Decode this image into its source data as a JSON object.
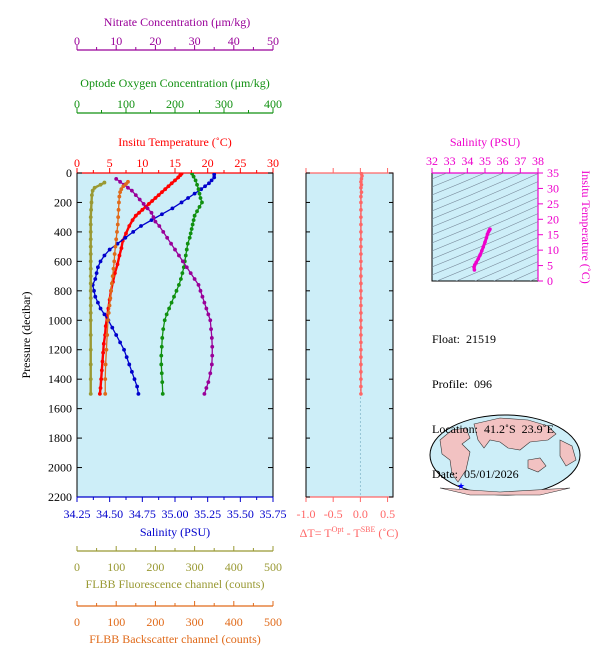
{
  "colors": {
    "temperature": "#ff0000",
    "salinity": "#0000cc",
    "oxygen": "#109010",
    "nitrate": "#990099",
    "fluorescence": "#999933",
    "backscatter": "#e06a1a",
    "delta_t": "#ff6666",
    "ts_magenta": "#ee00cc",
    "plot_bg": "#cdeef8"
  },
  "axes": {
    "nitrate": {
      "label": "Nitrate Concentration (μm/kg)",
      "ticks": [
        "0",
        "10",
        "20",
        "30",
        "40",
        "50"
      ]
    },
    "oxygen": {
      "label": "Optode Oxygen Concentration (μm/kg)",
      "ticks": [
        "0",
        "100",
        "200",
        "300",
        "400"
      ]
    },
    "temperature": {
      "label": "Insitu Temperature (˚C)",
      "ticks": [
        "0",
        "5",
        "10",
        "15",
        "20",
        "25",
        "30"
      ]
    },
    "pressure": {
      "label": "Pressure (decibar)",
      "ticks": [
        "0",
        "200",
        "400",
        "600",
        "800",
        "1000",
        "1200",
        "1400",
        "1600",
        "1800",
        "2000",
        "2200"
      ]
    },
    "salinity": {
      "label": "Salinity (PSU)",
      "ticks": [
        "34.25",
        "34.50",
        "34.75",
        "35.00",
        "35.25",
        "35.50",
        "35.75"
      ]
    },
    "fluorescence": {
      "label": "FLBB Fluorescence channel (counts)",
      "ticks": [
        "0",
        "100",
        "200",
        "300",
        "400",
        "500"
      ]
    },
    "backscatter": {
      "label": "FLBB Backscatter channel (counts)",
      "ticks": [
        "0",
        "100",
        "200",
        "300",
        "400",
        "500"
      ]
    },
    "delta_t": {
      "label_main": "ΔT= T",
      "sup1": "Opt",
      "label_mid": " - T",
      "sup2": "SBE",
      "label_end": " (˚C)",
      "ticks": [
        "-1.0",
        "-0.5",
        "0.0",
        "0.5"
      ]
    },
    "ts_salinity": {
      "label": "Salinity (PSU)",
      "ticks": [
        "32",
        "33",
        "34",
        "35",
        "36",
        "37",
        "38"
      ]
    },
    "ts_temperature": {
      "label": "Insitu Temperature (˚C)",
      "ticks": [
        "0",
        "5",
        "10",
        "15",
        "20",
        "25",
        "30",
        "35"
      ]
    }
  },
  "info": {
    "float": "Float:  21519",
    "profile": "Profile:  096",
    "location": "Location:  41.2˚S  23.9˚E",
    "date": "Date:  05/01/2026"
  },
  "chart_data": {
    "type": "line",
    "y_axis": "pressure",
    "ylim": [
      0,
      2200
    ],
    "series": [
      {
        "name": "Insitu Temperature",
        "axis": "temperature",
        "xlim": [
          0,
          30
        ],
        "points": [
          [
            16,
            5
          ],
          [
            15.8,
            15
          ],
          [
            15.5,
            30
          ],
          [
            15,
            50
          ],
          [
            14.5,
            70
          ],
          [
            14,
            90
          ],
          [
            13.5,
            110
          ],
          [
            13,
            130
          ],
          [
            12.5,
            150
          ],
          [
            12,
            170
          ],
          [
            11.5,
            190
          ],
          [
            11,
            210
          ],
          [
            10.5,
            230
          ],
          [
            10,
            250
          ],
          [
            9.5,
            270
          ],
          [
            9,
            290
          ],
          [
            8.5,
            320
          ],
          [
            8,
            360
          ],
          [
            7.5,
            410
          ],
          [
            7,
            460
          ],
          [
            6.8,
            510
          ],
          [
            6.5,
            560
          ],
          [
            6.2,
            620
          ],
          [
            5.8,
            680
          ],
          [
            5.5,
            740
          ],
          [
            5.2,
            800
          ],
          [
            5,
            860
          ],
          [
            4.8,
            920
          ],
          [
            4.6,
            980
          ],
          [
            4.4,
            1040
          ],
          [
            4.3,
            1100
          ],
          [
            4.1,
            1160
          ],
          [
            4,
            1220
          ],
          [
            3.9,
            1280
          ],
          [
            3.8,
            1340
          ],
          [
            3.7,
            1400
          ],
          [
            3.6,
            1460
          ],
          [
            3.5,
            1500
          ]
        ]
      },
      {
        "name": "Salinity",
        "axis": "salinity",
        "xlim": [
          34.25,
          35.75
        ],
        "points": [
          [
            35.3,
            10
          ],
          [
            35.3,
            30
          ],
          [
            35.28,
            50
          ],
          [
            35.26,
            70
          ],
          [
            35.23,
            90
          ],
          [
            35.2,
            110
          ],
          [
            35.15,
            140
          ],
          [
            35.1,
            170
          ],
          [
            35.05,
            200
          ],
          [
            34.98,
            240
          ],
          [
            34.9,
            280
          ],
          [
            34.82,
            320
          ],
          [
            34.74,
            360
          ],
          [
            34.68,
            400
          ],
          [
            34.62,
            440
          ],
          [
            34.56,
            480
          ],
          [
            34.5,
            520
          ],
          [
            34.46,
            560
          ],
          [
            34.43,
            600
          ],
          [
            34.41,
            640
          ],
          [
            34.4,
            680
          ],
          [
            34.39,
            720
          ],
          [
            34.37,
            760
          ],
          [
            34.38,
            800
          ],
          [
            34.39,
            840
          ],
          [
            34.41,
            880
          ],
          [
            34.43,
            920
          ],
          [
            34.46,
            960
          ],
          [
            34.49,
            1000
          ],
          [
            34.52,
            1050
          ],
          [
            34.55,
            1100
          ],
          [
            34.58,
            1150
          ],
          [
            34.61,
            1200
          ],
          [
            34.63,
            1250
          ],
          [
            34.65,
            1300
          ],
          [
            34.67,
            1350
          ],
          [
            34.69,
            1400
          ],
          [
            34.71,
            1450
          ],
          [
            34.72,
            1500
          ]
        ]
      },
      {
        "name": "Optode Oxygen Concentration",
        "axis": "oxygen",
        "xlim": [
          0,
          400
        ],
        "points": [
          [
            235,
            5
          ],
          [
            238,
            25
          ],
          [
            242,
            50
          ],
          [
            245,
            80
          ],
          [
            248,
            110
          ],
          [
            250,
            140
          ],
          [
            252,
            170
          ],
          [
            255,
            200
          ],
          [
            250,
            230
          ],
          [
            245,
            260
          ],
          [
            240,
            290
          ],
          [
            238,
            320
          ],
          [
            236,
            350
          ],
          [
            234,
            380
          ],
          [
            232,
            410
          ],
          [
            230,
            440
          ],
          [
            226,
            480
          ],
          [
            224,
            520
          ],
          [
            222,
            560
          ],
          [
            220,
            600
          ],
          [
            218,
            640
          ],
          [
            215,
            680
          ],
          [
            212,
            720
          ],
          [
            208,
            760
          ],
          [
            203,
            800
          ],
          [
            198,
            840
          ],
          [
            193,
            880
          ],
          [
            188,
            920
          ],
          [
            183,
            960
          ],
          [
            179,
            1000
          ],
          [
            176,
            1060
          ],
          [
            174,
            1120
          ],
          [
            173,
            1180
          ],
          [
            172,
            1240
          ],
          [
            172,
            1300
          ],
          [
            173,
            1360
          ],
          [
            174,
            1420
          ],
          [
            175,
            1500
          ]
        ]
      },
      {
        "name": "Nitrate Concentration",
        "axis": "nitrate",
        "xlim": [
          0,
          50
        ],
        "points": [
          [
            10,
            40
          ],
          [
            11,
            60
          ],
          [
            12,
            80
          ],
          [
            13,
            100
          ],
          [
            14,
            120
          ],
          [
            15,
            150
          ],
          [
            16,
            180
          ],
          [
            17,
            210
          ],
          [
            18,
            240
          ],
          [
            19,
            270
          ],
          [
            19.5,
            300
          ],
          [
            20,
            330
          ],
          [
            21,
            360
          ],
          [
            22,
            400
          ],
          [
            23,
            440
          ],
          [
            24,
            480
          ],
          [
            25,
            520
          ],
          [
            26,
            560
          ],
          [
            27,
            600
          ],
          [
            28,
            640
          ],
          [
            29,
            680
          ],
          [
            30,
            720
          ],
          [
            31,
            760
          ],
          [
            31.5,
            800
          ],
          [
            32,
            840
          ],
          [
            32.5,
            880
          ],
          [
            33,
            920
          ],
          [
            33.5,
            960
          ],
          [
            34,
            1000
          ],
          [
            34.2,
            1060
          ],
          [
            34.4,
            1120
          ],
          [
            34.5,
            1180
          ],
          [
            34.5,
            1240
          ],
          [
            34.4,
            1300
          ],
          [
            34,
            1360
          ],
          [
            33.5,
            1420
          ],
          [
            33,
            1460
          ],
          [
            32.5,
            1500
          ]
        ]
      },
      {
        "name": "FLBB Fluorescence channel",
        "axis": "fluorescence",
        "xlim": [
          0,
          500
        ],
        "points": [
          [
            70,
            65
          ],
          [
            60,
            80
          ],
          [
            45,
            100
          ],
          [
            40,
            120
          ],
          [
            38,
            150
          ],
          [
            37,
            200
          ],
          [
            36,
            250
          ],
          [
            35,
            300
          ],
          [
            35,
            350
          ],
          [
            35,
            400
          ],
          [
            35,
            450
          ],
          [
            35,
            500
          ],
          [
            35,
            550
          ],
          [
            35,
            600
          ],
          [
            35,
            650
          ],
          [
            35,
            700
          ],
          [
            35,
            750
          ],
          [
            35,
            800
          ],
          [
            35,
            850
          ],
          [
            35,
            900
          ],
          [
            35,
            950
          ],
          [
            35,
            1000
          ],
          [
            35,
            1100
          ],
          [
            35,
            1200
          ],
          [
            35,
            1300
          ],
          [
            35,
            1400
          ],
          [
            35,
            1500
          ]
        ]
      },
      {
        "name": "FLBB Backscatter channel",
        "axis": "backscatter",
        "xlim": [
          0,
          500
        ],
        "points": [
          [
            130,
            60
          ],
          [
            125,
            75
          ],
          [
            118,
            90
          ],
          [
            113,
            110
          ],
          [
            110,
            130
          ],
          [
            108,
            160
          ],
          [
            107,
            200
          ],
          [
            106,
            250
          ],
          [
            105,
            300
          ],
          [
            104,
            350
          ],
          [
            102,
            400
          ],
          [
            100,
            450
          ],
          [
            98,
            500
          ],
          [
            96,
            550
          ],
          [
            95,
            600
          ],
          [
            93,
            650
          ],
          [
            91,
            700
          ],
          [
            89,
            750
          ],
          [
            87,
            800
          ],
          [
            85,
            850
          ],
          [
            83,
            900
          ],
          [
            81,
            950
          ],
          [
            79,
            1000
          ],
          [
            77,
            1100
          ],
          [
            75,
            1200
          ],
          [
            73,
            1300
          ],
          [
            72,
            1400
          ],
          [
            72,
            1500
          ]
        ]
      }
    ],
    "delta_t": {
      "xlim": [
        -1.0,
        0.6
      ],
      "points": [
        [
          0.02,
          5
        ],
        [
          0.03,
          20
        ],
        [
          0.02,
          40
        ],
        [
          0.01,
          60
        ],
        [
          0.02,
          80
        ],
        [
          0.01,
          100
        ],
        [
          0.02,
          130
        ],
        [
          0.01,
          160
        ],
        [
          0.01,
          200
        ],
        [
          0.01,
          250
        ],
        [
          0.01,
          300
        ],
        [
          0.01,
          350
        ],
        [
          0.01,
          400
        ],
        [
          0.01,
          450
        ],
        [
          0.01,
          500
        ],
        [
          0.01,
          550
        ],
        [
          0.01,
          600
        ],
        [
          0.01,
          650
        ],
        [
          0.01,
          700
        ],
        [
          0.01,
          750
        ],
        [
          0.01,
          800
        ],
        [
          0.01,
          850
        ],
        [
          0.01,
          900
        ],
        [
          0.01,
          950
        ],
        [
          0.01,
          1000
        ],
        [
          0.01,
          1050
        ],
        [
          0.01,
          1100
        ],
        [
          0.01,
          1150
        ],
        [
          0.01,
          1200
        ],
        [
          0.01,
          1250
        ],
        [
          0.01,
          1300
        ],
        [
          0.01,
          1350
        ],
        [
          0.01,
          1400
        ],
        [
          0.01,
          1450
        ],
        [
          0.01,
          1500
        ]
      ]
    },
    "ts_diagram": {
      "xlim": [
        32,
        38
      ],
      "ylim": [
        0,
        35
      ],
      "points": [
        [
          34.4,
          3.6
        ],
        [
          34.38,
          4.5
        ],
        [
          34.42,
          5.2
        ],
        [
          34.5,
          6
        ],
        [
          34.62,
          7.2
        ],
        [
          34.72,
          8.4
        ],
        [
          34.82,
          9.8
        ],
        [
          34.9,
          11
        ],
        [
          35.0,
          12.6
        ],
        [
          35.08,
          14
        ],
        [
          35.14,
          15.2
        ],
        [
          35.2,
          16
        ],
        [
          35.25,
          16.5
        ],
        [
          35.28,
          16.8
        ]
      ]
    }
  }
}
